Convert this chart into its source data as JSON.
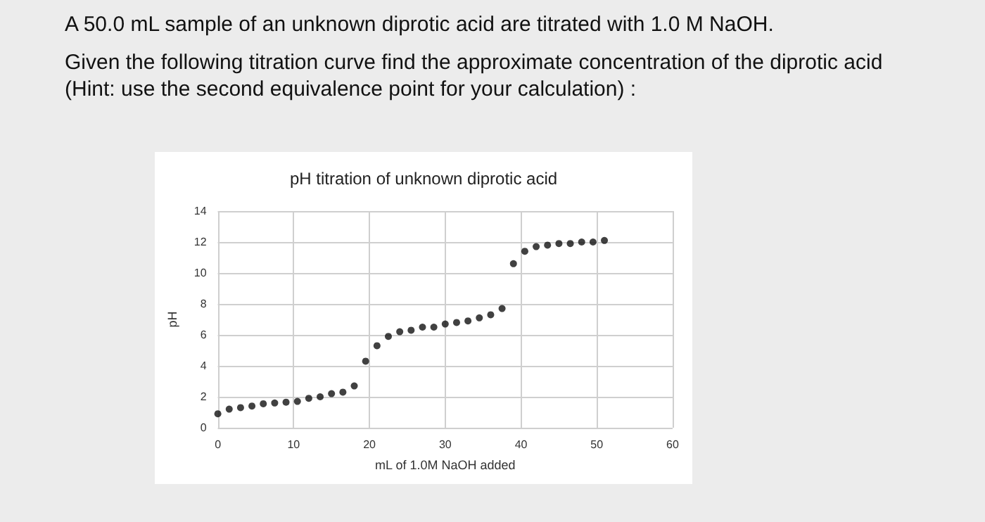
{
  "chart_data": {
    "type": "scatter",
    "title": "pH titration of unknown diprotic acid",
    "xlabel": "mL of 1.0M NaOH added",
    "ylabel": "pH",
    "annotations": [
      "A 50.0 mL sample of an unknown diprotic acid are titrated with 1.0 M NaOH.",
      "Given the following titration curve find the approximate concentration of the diprotic acid (Hint: use the second equivalence point for your calculation) :"
    ],
    "x": [
      0,
      1.5,
      3,
      4.5,
      6,
      7.5,
      9,
      10.5,
      12,
      13.5,
      15,
      16.5,
      18,
      19.5,
      21,
      22.5,
      24,
      25.5,
      27,
      28.5,
      30,
      31.5,
      33,
      34.5,
      36,
      37.5,
      39,
      40.5,
      42,
      43.5,
      45,
      46.5,
      48,
      49.5,
      51
    ],
    "series": [
      {
        "color": "#111111",
        "values": [
          0.9,
          1.2,
          1.3,
          1.4,
          1.55,
          1.6,
          1.65,
          1.7,
          1.9,
          2.0,
          2.2,
          2.3,
          2.7,
          4.3,
          5.3,
          5.9,
          6.2,
          6.3,
          6.5,
          6.5,
          6.7,
          6.8,
          6.9,
          7.1,
          7.3,
          7.7,
          10.6,
          11.4,
          11.7,
          11.8,
          11.9,
          11.9,
          12.0,
          12.0,
          12.1
        ]
      }
    ],
    "xlim": [
      0,
      60
    ],
    "xticks": [
      0,
      10,
      20,
      30,
      40,
      50,
      60
    ],
    "ylim": [
      0,
      14
    ],
    "yticks": [
      0,
      2,
      4,
      6,
      8,
      10,
      12,
      14
    ],
    "grid": true,
    "marker": "circle"
  }
}
